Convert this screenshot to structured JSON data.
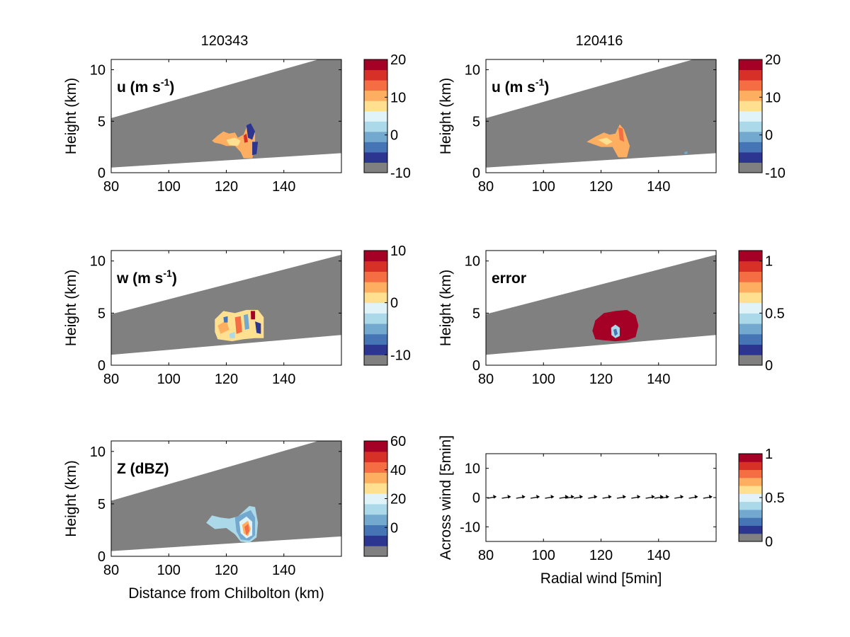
{
  "colors": {
    "gray": "#808080",
    "colormap": [
      "#808080",
      "#2c3590",
      "#4575b4",
      "#74a9cf",
      "#abd9e9",
      "#e0f3f8",
      "#fee090",
      "#fdae61",
      "#f46d43",
      "#d73027",
      "#a50026"
    ]
  },
  "column_titles": [
    "120343",
    "120416"
  ],
  "chart_data": [
    {
      "id": "u-left",
      "type": "heatmap",
      "panel_label": "u (m s",
      "panel_label_sup": "-1",
      "panel_label_end": ")",
      "xlabel": "",
      "ylabel": "Height (km)",
      "xlim": [
        80,
        160
      ],
      "ylim": [
        0,
        11
      ],
      "xticks": [
        "80",
        "100",
        "120",
        "140"
      ],
      "yticks": [
        "0",
        "5",
        "10"
      ],
      "beam_bottom": [
        [
          80,
          0.5
        ],
        [
          160,
          1.9
        ]
      ],
      "beam_top": [
        [
          80,
          5.3
        ],
        [
          152,
          11
        ]
      ],
      "colorbar": {
        "min": -10,
        "max": 20,
        "ticks": [
          "20",
          "10",
          "0",
          "-10"
        ]
      }
    },
    {
      "id": "u-right",
      "type": "heatmap",
      "panel_label": "u (m s",
      "panel_label_sup": "-1",
      "panel_label_end": ")",
      "xlabel": "",
      "ylabel": "Height (km)",
      "xlim": [
        80,
        160
      ],
      "ylim": [
        0,
        11
      ],
      "xticks": [
        "80",
        "100",
        "120",
        "140"
      ],
      "yticks": [
        "0",
        "5",
        "10"
      ],
      "beam_bottom": [
        [
          80,
          0.5
        ],
        [
          160,
          1.9
        ]
      ],
      "beam_top": [
        [
          80,
          5.3
        ],
        [
          152,
          11
        ]
      ],
      "colorbar": {
        "min": -10,
        "max": 20,
        "ticks": [
          "20",
          "10",
          "0",
          "-10"
        ]
      }
    },
    {
      "id": "w-left",
      "type": "heatmap",
      "panel_label": "w (m s",
      "panel_label_sup": "-1",
      "panel_label_end": ")",
      "xlabel": "",
      "ylabel": "Height (km)",
      "xlim": [
        80,
        160
      ],
      "ylim": [
        0,
        11
      ],
      "xticks": [
        "80",
        "100",
        "120",
        "140"
      ],
      "yticks": [
        "0",
        "5",
        "10"
      ],
      "beam_bottom": [
        [
          80,
          1.0
        ],
        [
          160,
          2.9
        ]
      ],
      "beam_top": [
        [
          80,
          4.9
        ],
        [
          160,
          10.6
        ]
      ],
      "colorbar": {
        "min": -12,
        "max": 10,
        "ticks": [
          "10",
          "0",
          "-10"
        ]
      }
    },
    {
      "id": "error-right",
      "type": "heatmap",
      "panel_label": "error",
      "panel_label_sup": "",
      "panel_label_end": "",
      "xlabel": "",
      "ylabel": "Height (km)",
      "xlim": [
        80,
        160
      ],
      "ylim": [
        0,
        11
      ],
      "xticks": [
        "80",
        "100",
        "120",
        "140"
      ],
      "yticks": [
        "0",
        "5",
        "10"
      ],
      "beam_bottom": [
        [
          80,
          1.0
        ],
        [
          160,
          2.9
        ]
      ],
      "beam_top": [
        [
          80,
          4.9
        ],
        [
          160,
          10.6
        ]
      ],
      "colorbar": {
        "min": 0,
        "max": 1.1,
        "ticks": [
          "1",
          "0.5",
          "0"
        ]
      }
    },
    {
      "id": "z-left",
      "type": "heatmap",
      "panel_label": "Z (dBZ)",
      "panel_label_sup": "",
      "panel_label_end": "",
      "xlabel": "Distance from Chilbolton (km)",
      "ylabel": "Height (km)",
      "xlim": [
        80,
        160
      ],
      "ylim": [
        0,
        11
      ],
      "xticks": [
        "80",
        "100",
        "120",
        "140"
      ],
      "yticks": [
        "0",
        "5",
        "10"
      ],
      "beam_bottom": [
        [
          80,
          0.5
        ],
        [
          160,
          1.9
        ]
      ],
      "beam_top": [
        [
          80,
          5.3
        ],
        [
          152,
          11
        ]
      ],
      "colorbar": {
        "min": -20,
        "max": 60,
        "ticks": [
          "60",
          "40",
          "20",
          "0"
        ]
      }
    },
    {
      "id": "wind-right",
      "type": "scatter",
      "panel_label": "",
      "panel_label_sup": "",
      "panel_label_end": "",
      "xlabel": "Radial wind [5min]",
      "ylabel": "Across wind [5min]",
      "xlim": [
        80,
        160
      ],
      "ylim": [
        -15,
        15
      ],
      "xticks": [
        "80",
        "100",
        "120",
        "140"
      ],
      "yticks": [
        "10",
        "0",
        "-10"
      ],
      "arrows_x": [
        82,
        87,
        92,
        97,
        102,
        107,
        109,
        112,
        117,
        122,
        127,
        132,
        137,
        140,
        142,
        147,
        152,
        157
      ],
      "colorbar": {
        "min": 0,
        "max": 1,
        "ticks": [
          "1",
          "0.5",
          "0"
        ]
      }
    }
  ]
}
